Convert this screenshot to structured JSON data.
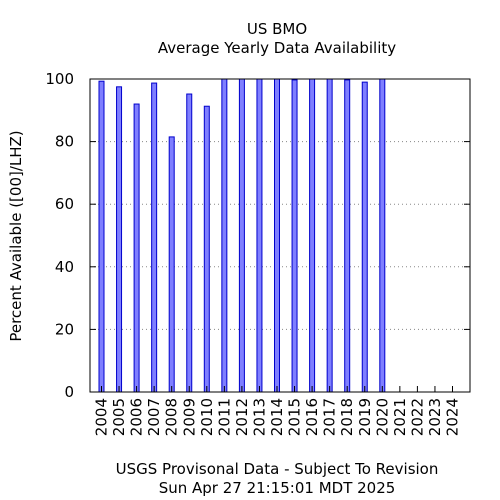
{
  "chart_data": {
    "type": "bar",
    "title": "US BMO",
    "subtitle": "Average Yearly Data Availability",
    "xlabel": "",
    "ylabel": "Percent Available ([00]/LHZ)",
    "categories": [
      "2004",
      "2005",
      "2006",
      "2007",
      "2008",
      "2009",
      "2010",
      "2011",
      "2012",
      "2013",
      "2014",
      "2015",
      "2016",
      "2017",
      "2018",
      "2019",
      "2020",
      "2021",
      "2022",
      "2023",
      "2024"
    ],
    "values": [
      99.3,
      97.5,
      92.0,
      98.7,
      81.5,
      95.2,
      91.3,
      100.0,
      100.0,
      100.0,
      100.0,
      99.7,
      100.0,
      100.0,
      99.7,
      99.0,
      100.0,
      null,
      null,
      null,
      null
    ],
    "ylim": [
      0,
      100
    ],
    "yticks": [
      0,
      20,
      40,
      60,
      80,
      100
    ],
    "grid": true,
    "legend": "none",
    "colors": {
      "bar_fill": "#7f7fff",
      "bar_stroke": "#0000cc",
      "grid": "#888888",
      "axis": "#000000"
    }
  },
  "footer": {
    "line1": "USGS Provisonal Data - Subject To Revision",
    "line2": "Sun Apr 27 21:15:01 MDT 2025"
  }
}
